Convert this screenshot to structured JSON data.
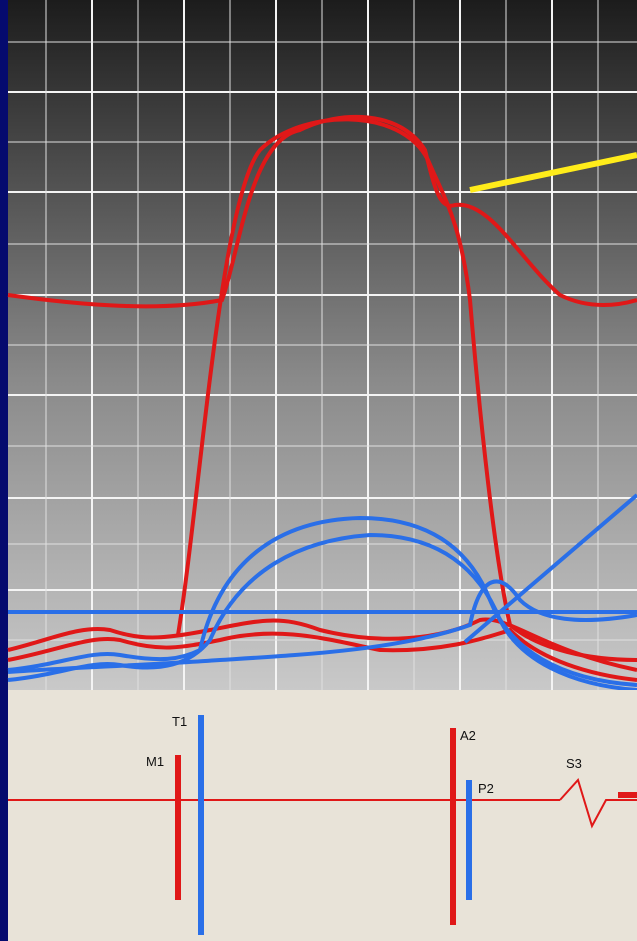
{
  "sound_labels": {
    "m1": "M1",
    "t1": "T1",
    "a2": "A2",
    "p2": "P2",
    "s3": "S3"
  }
}
